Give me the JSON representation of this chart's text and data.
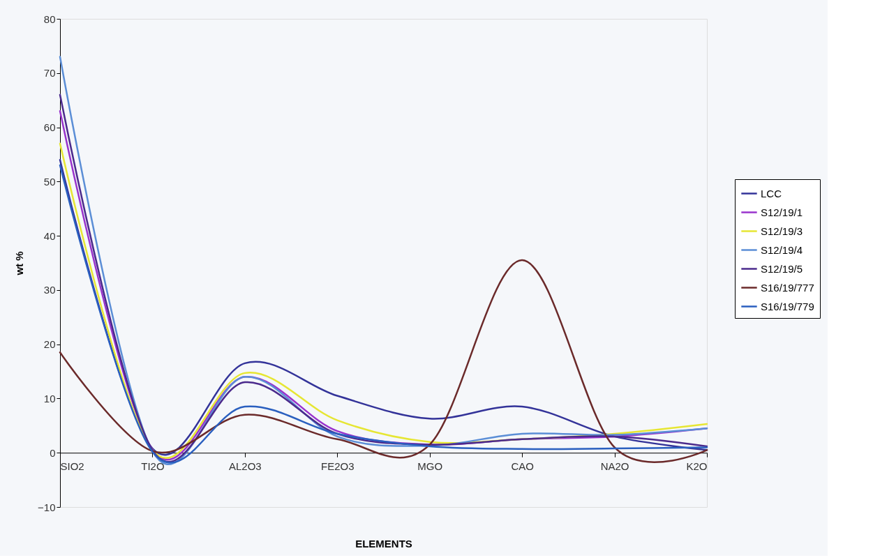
{
  "chart_data": {
    "type": "line",
    "xlabel": "ELEMENTS",
    "ylabel": "wt %",
    "categories": [
      "SIO2",
      "TI2O",
      "AL2O3",
      "FE2O3",
      "MGO",
      "CAO",
      "NA2O",
      "K2O"
    ],
    "ylim": [
      -10,
      80
    ],
    "yticks": [
      -10,
      0,
      10,
      20,
      30,
      40,
      50,
      60,
      70,
      80
    ],
    "grid": false,
    "legend": "right",
    "marker": "none",
    "line_style": "solid",
    "series": [
      {
        "name": "LCC",
        "color": "#333399",
        "values": [
          54,
          0.8,
          16.5,
          10.5,
          6.3,
          8.5,
          3,
          0.5
        ]
      },
      {
        "name": "S12/19/1",
        "color": "#9933cc",
        "values": [
          63,
          0.6,
          14,
          4,
          1.5,
          2.5,
          3,
          4.5
        ]
      },
      {
        "name": "S12/19/3",
        "color": "#e6e633",
        "values": [
          57,
          0.5,
          14.7,
          6,
          2,
          2.5,
          3.5,
          5.3
        ]
      },
      {
        "name": "S12/19/4",
        "color": "#5b8ed6",
        "values": [
          73,
          0.3,
          14,
          3,
          1.3,
          3.5,
          3.3,
          4.5
        ]
      },
      {
        "name": "S12/19/5",
        "color": "#4b2a8c",
        "values": [
          66,
          0.5,
          13,
          3.5,
          1.5,
          2.5,
          3,
          1.2
        ]
      },
      {
        "name": "S16/19/777",
        "color": "#6b2a2a",
        "values": [
          18.5,
          0.3,
          7,
          2.5,
          1.5,
          35.5,
          1,
          0.5
        ]
      },
      {
        "name": "S16/19/779",
        "color": "#2a5fbf",
        "values": [
          53,
          0.2,
          8.5,
          3.5,
          1.2,
          0.7,
          0.8,
          1
        ]
      }
    ]
  }
}
